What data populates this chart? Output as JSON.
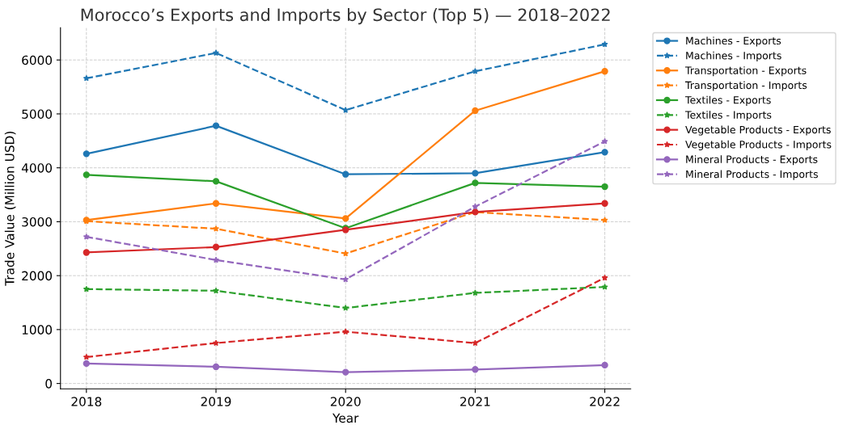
{
  "chart_data": {
    "type": "line",
    "title": "Morocco’s Exports and Imports by Sector (Top 5) — 2018–2022",
    "xlabel": "Year",
    "ylabel": "Trade Value (Million USD)",
    "x": [
      2018,
      2019,
      2020,
      2021,
      2022
    ],
    "series": [
      {
        "name": "Machines - Exports",
        "color": "#1f77b4",
        "marker": "circle",
        "line_style": "solid",
        "values": [
          4260,
          4780,
          3880,
          3900,
          4290
        ]
      },
      {
        "name": "Machines - Imports",
        "color": "#1f77b4",
        "marker": "star",
        "line_style": "dashed",
        "values": [
          5660,
          6130,
          5070,
          5790,
          6290
        ]
      },
      {
        "name": "Transportation - Exports",
        "color": "#ff7f0e",
        "marker": "circle",
        "line_style": "solid",
        "values": [
          3030,
          3340,
          3060,
          5060,
          5790
        ]
      },
      {
        "name": "Transportation - Imports",
        "color": "#ff7f0e",
        "marker": "star",
        "line_style": "dashed",
        "values": [
          3010,
          2870,
          2410,
          3180,
          3030
        ]
      },
      {
        "name": "Textiles - Exports",
        "color": "#2ca02c",
        "marker": "circle",
        "line_style": "solid",
        "values": [
          3870,
          3750,
          2880,
          3720,
          3650
        ]
      },
      {
        "name": "Textiles - Imports",
        "color": "#2ca02c",
        "marker": "star",
        "line_style": "dashed",
        "values": [
          1750,
          1720,
          1400,
          1680,
          1790
        ]
      },
      {
        "name": "Vegetable Products - Exports",
        "color": "#d62728",
        "marker": "circle",
        "line_style": "solid",
        "values": [
          2430,
          2530,
          2850,
          3180,
          3340
        ]
      },
      {
        "name": "Vegetable Products - Imports",
        "color": "#d62728",
        "marker": "star",
        "line_style": "dashed",
        "values": [
          490,
          750,
          960,
          750,
          1960
        ]
      },
      {
        "name": "Mineral Products - Exports",
        "color": "#9467bd",
        "marker": "circle",
        "line_style": "solid",
        "values": [
          370,
          310,
          210,
          260,
          340
        ]
      },
      {
        "name": "Mineral Products - Imports",
        "color": "#9467bd",
        "marker": "star",
        "line_style": "dashed",
        "values": [
          2720,
          2290,
          1930,
          3280,
          4490
        ]
      }
    ],
    "xlim": [
      2017.8,
      2022.2
    ],
    "xticks": [
      2018,
      2019,
      2020,
      2021,
      2022
    ],
    "ylim": [
      -100,
      6600
    ],
    "yticks": [
      0,
      1000,
      2000,
      3000,
      4000,
      5000,
      6000
    ],
    "grid": true,
    "legend": "top right"
  }
}
